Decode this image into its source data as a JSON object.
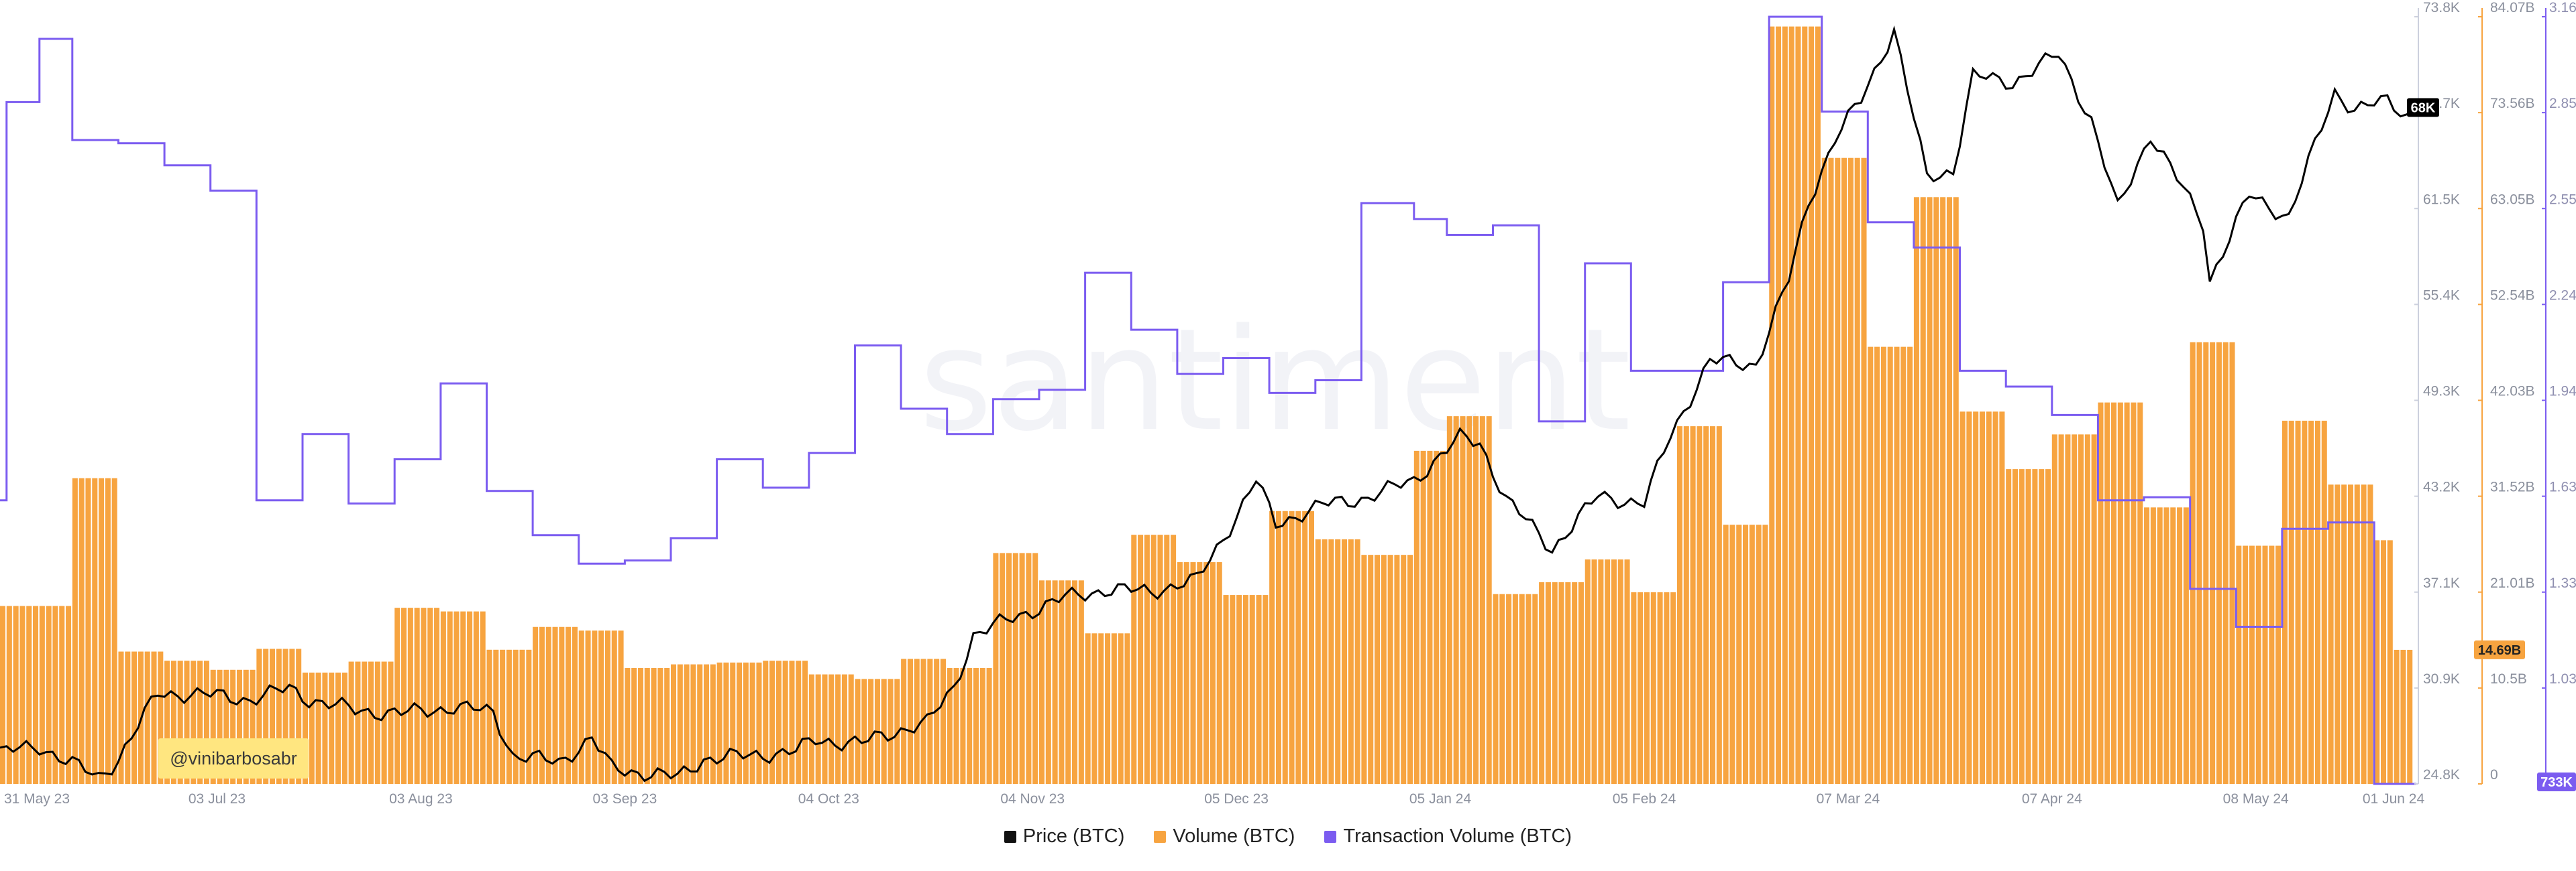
{
  "chart_data": {
    "type": "bar",
    "watermark": "santiment",
    "credit": "@vinibarbosabr",
    "x_ticks": [
      "31 May 23",
      "03 Jul 23",
      "03 Aug 23",
      "03 Sep 23",
      "04 Oct 23",
      "04 Nov 23",
      "05 Dec 23",
      "05 Jan 24",
      "05 Feb 24",
      "07 Mar 24",
      "07 Apr 24",
      "08 May 24",
      "01 Jun 24"
    ],
    "x_range": [
      "2023-05-31",
      "2024-06-01"
    ],
    "axes": {
      "price": {
        "ticks": [
          "73.8K",
          "67.7K",
          "61.5K",
          "55.4K",
          "49.3K",
          "43.2K",
          "37.1K",
          "30.9K",
          "24.8K"
        ],
        "range": [
          24800,
          73800
        ],
        "color": "#000000"
      },
      "volume": {
        "ticks": [
          "84.07B",
          "73.56B",
          "63.05B",
          "52.54B",
          "42.03B",
          "31.52B",
          "21.01B",
          "10.5B",
          "0"
        ],
        "range": [
          0,
          84070000000
        ],
        "color": "#f7a440"
      },
      "tx_volume": {
        "ticks": [
          "3.16M",
          "2.85M",
          "2.55M",
          "2.24M",
          "1.94M",
          "1.63M",
          "1.33M",
          "1.03M"
        ],
        "range": [
          733000,
          3160000
        ],
        "color": "#7b5cf0"
      }
    },
    "badges": {
      "price": {
        "text": "68K",
        "bg": "#000000",
        "fg": "#ffffff"
      },
      "volume": {
        "text": "14.69B",
        "bg": "#f7a440",
        "fg": "#222222"
      },
      "tx_volume": {
        "text": "733K",
        "bg": "#7b5cf0",
        "fg": "#ffffff"
      }
    },
    "series": [
      {
        "name": "Volume (BTC)",
        "type": "bar",
        "color": "#f7a440",
        "steps": [
          [
            "2023-05-31",
            19.5
          ],
          [
            "2023-06-11",
            33.5
          ],
          [
            "2023-06-18",
            14.5
          ],
          [
            "2023-06-25",
            13.5
          ],
          [
            "2023-07-02",
            12.5
          ],
          [
            "2023-07-09",
            14.8
          ],
          [
            "2023-07-16",
            12.2
          ],
          [
            "2023-07-23",
            13.4
          ],
          [
            "2023-07-30",
            19.3
          ],
          [
            "2023-08-06",
            18.9
          ],
          [
            "2023-08-13",
            14.7
          ],
          [
            "2023-08-20",
            17.2
          ],
          [
            "2023-08-27",
            16.8
          ],
          [
            "2023-09-03",
            12.7
          ],
          [
            "2023-09-10",
            13.1
          ],
          [
            "2023-09-17",
            13.3
          ],
          [
            "2023-09-24",
            13.5
          ],
          [
            "2023-10-01",
            12.0
          ],
          [
            "2023-10-08",
            11.5
          ],
          [
            "2023-10-15",
            13.7
          ],
          [
            "2023-10-22",
            12.7
          ],
          [
            "2023-10-29",
            25.3
          ],
          [
            "2023-11-05",
            22.3
          ],
          [
            "2023-11-12",
            16.5
          ],
          [
            "2023-11-19",
            27.3
          ],
          [
            "2023-11-26",
            24.3
          ],
          [
            "2023-12-03",
            20.7
          ],
          [
            "2023-12-10",
            29.9
          ],
          [
            "2023-12-17",
            26.8
          ],
          [
            "2023-12-24",
            25.1
          ],
          [
            "2024-01-01",
            36.5
          ],
          [
            "2024-01-06",
            40.3
          ],
          [
            "2024-01-13",
            20.8
          ],
          [
            "2024-01-20",
            22.1
          ],
          [
            "2024-01-27",
            24.6
          ],
          [
            "2024-02-03",
            21.0
          ],
          [
            "2024-02-10",
            39.2
          ],
          [
            "2024-02-17",
            28.4
          ],
          [
            "2024-02-24",
            83.0
          ],
          [
            "2024-03-03",
            68.6
          ],
          [
            "2024-03-10",
            47.9
          ],
          [
            "2024-03-17",
            64.3
          ],
          [
            "2024-03-24",
            40.8
          ],
          [
            "2024-03-31",
            34.5
          ],
          [
            "2024-04-07",
            38.3
          ],
          [
            "2024-04-14",
            41.8
          ],
          [
            "2024-04-21",
            30.3
          ],
          [
            "2024-04-28",
            48.4
          ],
          [
            "2024-05-05",
            26.1
          ],
          [
            "2024-05-12",
            39.8
          ],
          [
            "2024-05-19",
            32.8
          ],
          [
            "2024-05-26",
            26.7
          ],
          [
            "2024-05-29",
            14.69
          ]
        ],
        "unit": "billion BTC"
      },
      {
        "name": "Transaction Volume (BTC)",
        "type": "line",
        "color": "#7b5cf0",
        "steps": [
          [
            "2023-05-31",
            1.63
          ],
          [
            "2023-06-01",
            2.89
          ],
          [
            "2023-06-06",
            3.09
          ],
          [
            "2023-06-11",
            2.77
          ],
          [
            "2023-06-18",
            2.76
          ],
          [
            "2023-06-25",
            2.69
          ],
          [
            "2023-07-02",
            2.61
          ],
          [
            "2023-07-09",
            1.63
          ],
          [
            "2023-07-16",
            1.84
          ],
          [
            "2023-07-23",
            1.62
          ],
          [
            "2023-07-30",
            1.76
          ],
          [
            "2023-08-06",
            2.0
          ],
          [
            "2023-08-13",
            1.66
          ],
          [
            "2023-08-20",
            1.52
          ],
          [
            "2023-08-27",
            1.43
          ],
          [
            "2023-09-03",
            1.44
          ],
          [
            "2023-09-10",
            1.51
          ],
          [
            "2023-09-17",
            1.76
          ],
          [
            "2023-09-24",
            1.67
          ],
          [
            "2023-10-01",
            1.78
          ],
          [
            "2023-10-08",
            2.12
          ],
          [
            "2023-10-15",
            1.92
          ],
          [
            "2023-10-22",
            1.84
          ],
          [
            "2023-10-29",
            1.95
          ],
          [
            "2023-11-05",
            1.98
          ],
          [
            "2023-11-12",
            2.35
          ],
          [
            "2023-11-19",
            2.17
          ],
          [
            "2023-11-26",
            2.03
          ],
          [
            "2023-12-03",
            2.08
          ],
          [
            "2023-12-10",
            1.97
          ],
          [
            "2023-12-17",
            2.01
          ],
          [
            "2023-12-24",
            2.57
          ],
          [
            "2024-01-01",
            2.52
          ],
          [
            "2024-01-06",
            2.47
          ],
          [
            "2024-01-13",
            2.5
          ],
          [
            "2024-01-20",
            1.88
          ],
          [
            "2024-01-27",
            2.38
          ],
          [
            "2024-02-03",
            2.04
          ],
          [
            "2024-02-10",
            2.04
          ],
          [
            "2024-02-17",
            2.32
          ],
          [
            "2024-02-24",
            3.16
          ],
          [
            "2024-03-03",
            2.86
          ],
          [
            "2024-03-10",
            2.51
          ],
          [
            "2024-03-17",
            2.43
          ],
          [
            "2024-03-24",
            2.04
          ],
          [
            "2024-03-31",
            1.99
          ],
          [
            "2024-04-07",
            1.9
          ],
          [
            "2024-04-14",
            1.63
          ],
          [
            "2024-04-21",
            1.64
          ],
          [
            "2024-04-28",
            1.35
          ],
          [
            "2024-05-05",
            1.23
          ],
          [
            "2024-05-12",
            1.54
          ],
          [
            "2024-05-19",
            1.56
          ],
          [
            "2024-05-26",
            0.733
          ]
        ],
        "unit": "million BTC"
      },
      {
        "name": "Price (BTC)",
        "type": "line",
        "color": "#000000",
        "points": [
          [
            "2023-05-31",
            26.8
          ],
          [
            "2023-06-06",
            27.2
          ],
          [
            "2023-06-15",
            25.2
          ],
          [
            "2023-06-18",
            26.4
          ],
          [
            "2023-06-24",
            30.6
          ],
          [
            "2023-07-01",
            30.5
          ],
          [
            "2023-07-08",
            30.2
          ],
          [
            "2023-07-14",
            30.9
          ],
          [
            "2023-07-17",
            30.2
          ],
          [
            "2023-07-24",
            29.5
          ],
          [
            "2023-07-31",
            29.3
          ],
          [
            "2023-08-08",
            29.7
          ],
          [
            "2023-08-14",
            29.4
          ],
          [
            "2023-08-17",
            26.6
          ],
          [
            "2023-08-24",
            26.2
          ],
          [
            "2023-08-29",
            27.7
          ],
          [
            "2023-09-01",
            25.8
          ],
          [
            "2023-09-11",
            25.2
          ],
          [
            "2023-09-15",
            26.4
          ],
          [
            "2023-09-22",
            26.6
          ],
          [
            "2023-09-29",
            26.9
          ],
          [
            "2023-10-02",
            27.6
          ],
          [
            "2023-10-09",
            27.4
          ],
          [
            "2023-10-16",
            28.4
          ],
          [
            "2023-10-19",
            28.7
          ],
          [
            "2023-10-23",
            30.9
          ],
          [
            "2023-10-26",
            34.3
          ],
          [
            "2023-11-01",
            35.4
          ],
          [
            "2023-11-09",
            36.7
          ],
          [
            "2023-11-15",
            37.2
          ],
          [
            "2023-11-22",
            37.1
          ],
          [
            "2023-11-29",
            37.8
          ],
          [
            "2023-12-05",
            41.9
          ],
          [
            "2023-12-08",
            44.2
          ],
          [
            "2023-12-11",
            41.4
          ],
          [
            "2023-12-18",
            42.6
          ],
          [
            "2023-12-25",
            43.1
          ],
          [
            "2024-01-01",
            44.2
          ],
          [
            "2024-01-08",
            46.9
          ],
          [
            "2024-01-11",
            46.6
          ],
          [
            "2024-01-15",
            43.0
          ],
          [
            "2024-01-22",
            39.8
          ],
          [
            "2024-01-29",
            43.2
          ],
          [
            "2024-02-05",
            42.7
          ],
          [
            "2024-02-09",
            47.1
          ],
          [
            "2024-02-15",
            51.8
          ],
          [
            "2024-02-22",
            51.6
          ],
          [
            "2024-02-27",
            57.0
          ],
          [
            "2024-03-01",
            62.0
          ],
          [
            "2024-03-05",
            66.0
          ],
          [
            "2024-03-09",
            68.5
          ],
          [
            "2024-03-14",
            73.0
          ],
          [
            "2024-03-19",
            63.5
          ],
          [
            "2024-03-23",
            64.0
          ],
          [
            "2024-03-26",
            70.0
          ],
          [
            "2024-04-01",
            69.6
          ],
          [
            "2024-04-08",
            71.4
          ],
          [
            "2024-04-13",
            67.2
          ],
          [
            "2024-04-17",
            61.5
          ],
          [
            "2024-04-22",
            66.3
          ],
          [
            "2024-04-30",
            60.6
          ],
          [
            "2024-05-01",
            57.0
          ],
          [
            "2024-05-07",
            62.4
          ],
          [
            "2024-05-13",
            61.0
          ],
          [
            "2024-05-20",
            69.0
          ],
          [
            "2024-05-23",
            67.9
          ],
          [
            "2024-05-28",
            68.4
          ],
          [
            "2024-05-31",
            67.5
          ],
          [
            "2024-06-01",
            68.0
          ]
        ],
        "unit": "thousand USD"
      }
    ]
  },
  "legend": [
    {
      "label": "Price (BTC)",
      "color": "#111111"
    },
    {
      "label": "Volume (BTC)",
      "color": "#f7a440"
    },
    {
      "label": "Transaction Volume (BTC)",
      "color": "#7b5cf0"
    }
  ]
}
